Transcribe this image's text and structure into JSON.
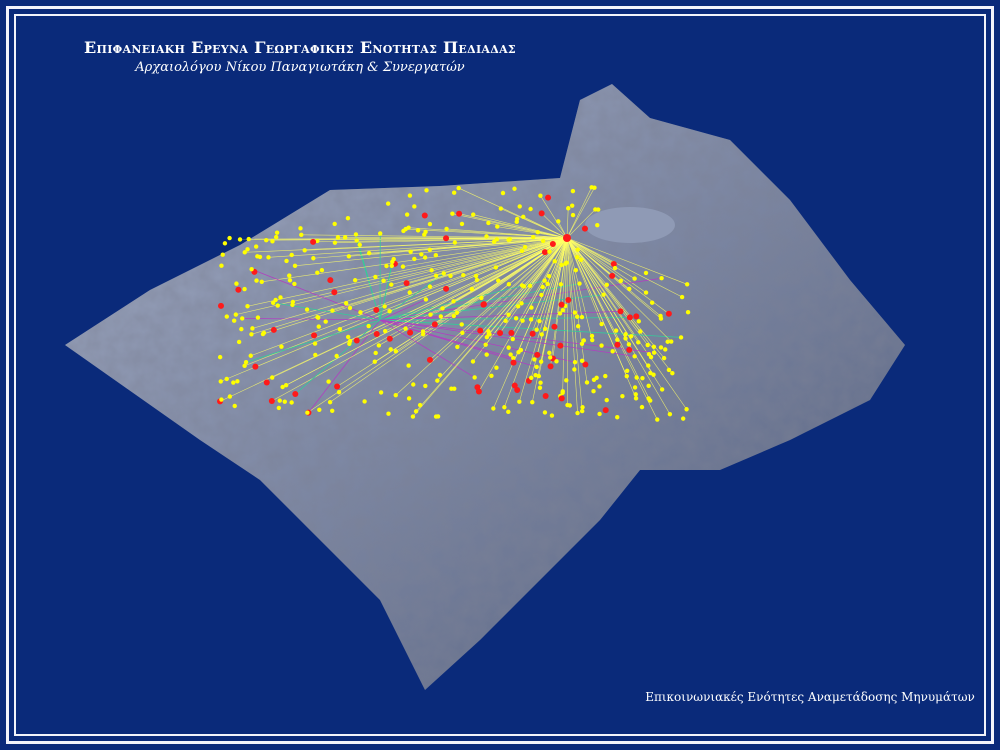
{
  "header": {
    "title": "Επιφανειακη  Ερευνα Γεωργαφικης Ενοτητας Πεδιαδας",
    "subtitle": "Αρχαιολόγου Νίκου Παναγιωτάκη & Συνεργατών"
  },
  "caption": "Επικοινωνιακές Ενότητες Αναμετάδοσης Μηνυμάτων",
  "colors": {
    "background": "#0a2a7a",
    "terrain": "#7f8aa8",
    "site_points": "#ffff00",
    "hub_points": "#ff1a1a",
    "links_primary": "#ffff66",
    "links_secondary": "#33cc99",
    "links_tertiary": "#b040c0"
  }
}
